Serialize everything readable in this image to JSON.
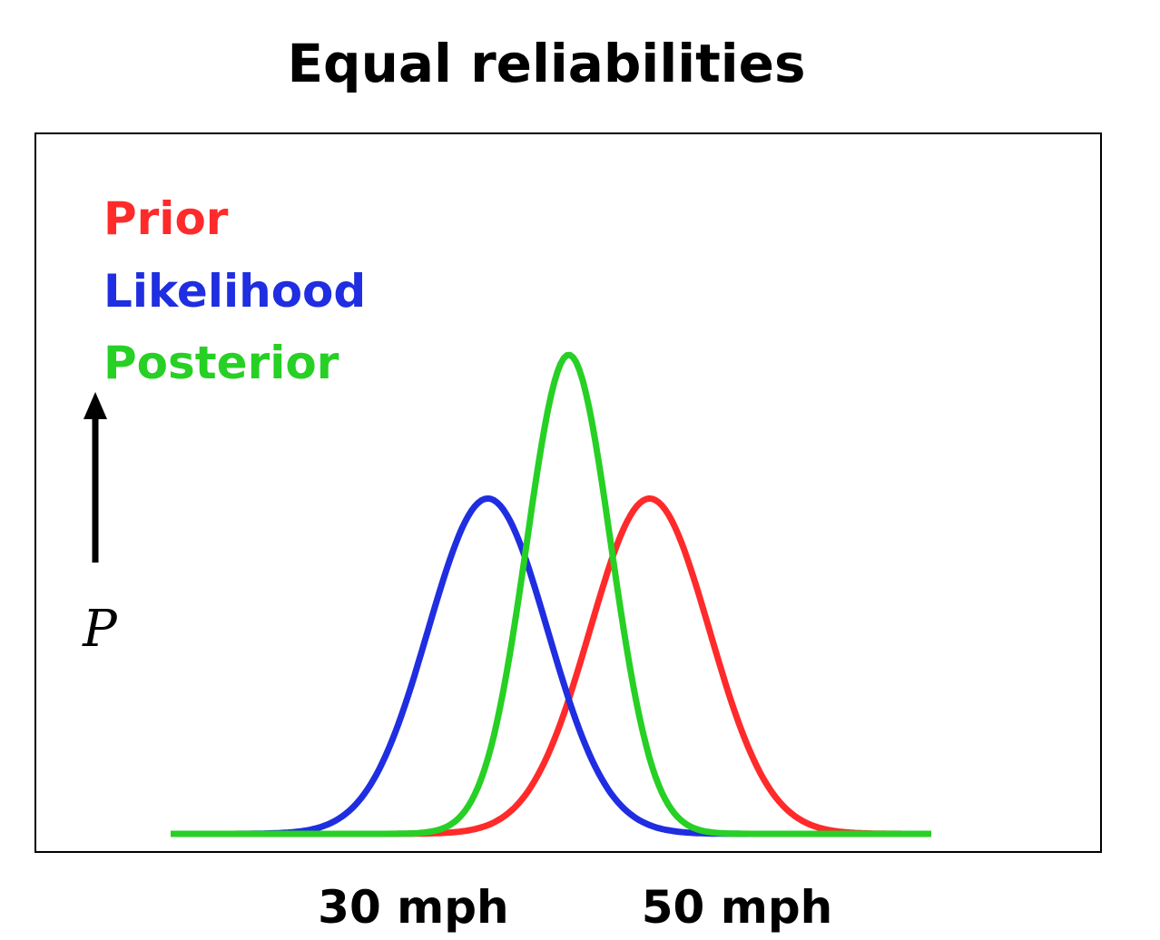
{
  "chart_data": {
    "type": "line",
    "title": "Equal reliabilities",
    "xlabel": "",
    "ylabel": "P",
    "x_range_mph": [
      15,
      62
    ],
    "y_range": [
      0,
      1.05
    ],
    "grid": false,
    "legend_placement": "top-left",
    "ticks": [
      {
        "value": 30,
        "label": "30 mph"
      },
      {
        "value": 50,
        "label": "50 mph"
      }
    ],
    "series": [
      {
        "name": "Prior",
        "color": "#ff2a2a",
        "mean_mph": 44.6,
        "sd_mph": 3.7,
        "peak": 0.7
      },
      {
        "name": "Likelihood",
        "color": "#1f2ee0",
        "mean_mph": 34.6,
        "sd_mph": 3.7,
        "peak": 0.7
      },
      {
        "name": "Posterior",
        "color": "#27d024",
        "mean_mph": 39.6,
        "sd_mph": 2.6,
        "peak": 1.0
      }
    ]
  }
}
